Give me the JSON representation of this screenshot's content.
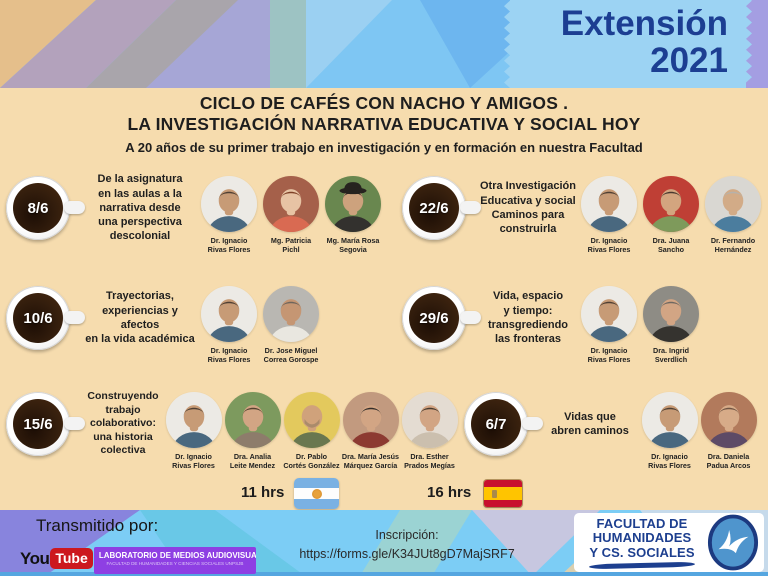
{
  "badge": {
    "line1": "Extensión",
    "line2": "2021"
  },
  "title": {
    "line1": "CICLO DE CAFÉS CON NACHO Y AMIGOS .",
    "line2": "LA INVESTIGACIÓN NARRATIVA EDUCATIVA Y SOCIAL HOY",
    "subtitle": "A 20 años de su primer trabajo en investigación y en formación en nuestra Facultad"
  },
  "sessions": [
    {
      "date": "8/6",
      "description": "De la asignatura\nen las aulas  a la\nnarrativa desde\nuna perspectiva\ndescolonial",
      "speakers": [
        {
          "name": "Dr. Ignacio\nRivas Flores",
          "photo": {
            "bg": "#eceae5",
            "hair": "#4e3f33",
            "skin": "#c79b76",
            "shirt": "#49687f"
          }
        },
        {
          "name": "Mg. Patricia\nPichl",
          "photo": {
            "bg": "#a5604a",
            "hair": "#7d4026",
            "skin": "#e7c3a4",
            "shirt": "#d96a52"
          }
        },
        {
          "name": "Mg. María Rosa\nSegovia",
          "photo": {
            "bg": "#69874f",
            "hair": "#2c2824",
            "skin": "#cda27d",
            "shirt": "#33312e",
            "hat": true
          }
        }
      ]
    },
    {
      "date": "22/6",
      "description": "Otra Investigación\nEducativa y social\nCaminos para\nconstruirla",
      "speakers": [
        {
          "name": "Dr. Ignacio\nRivas Flores",
          "photo": {
            "bg": "#eceae5",
            "hair": "#4e3f33",
            "skin": "#c79b76",
            "shirt": "#49687f"
          }
        },
        {
          "name": "Dra. Juana\nSancho",
          "photo": {
            "bg": "#bf3f35",
            "hair": "#47382f",
            "skin": "#d3a57f",
            "shirt": "#7e9a5b"
          }
        },
        {
          "name": "Dr. Fernando\nHernández",
          "photo": {
            "bg": "#d9d7d2",
            "hair": "#b5b2ac",
            "skin": "#d2ab87",
            "shirt": "#4b7d9e"
          }
        }
      ]
    },
    {
      "date": "10/6",
      "description": "Trayectorias,\nexperiencias y\nafectos\nen la vida académica",
      "speakers": [
        {
          "name": "Dr. Ignacio\nRivas Flores",
          "photo": {
            "bg": "#eceae5",
            "hair": "#4e3f33",
            "skin": "#c79b76",
            "shirt": "#49687f"
          }
        },
        {
          "name": "Dr. Jose Miguel\nCorrea Gorospe",
          "photo": {
            "bg": "#b9b7b2",
            "hair": "#6e655c",
            "skin": "#c59673",
            "shirt": "#e9e7e0"
          }
        }
      ]
    },
    {
      "date": "29/6",
      "description": "Vida, espacio\ny tiempo:\ntransgrediendo\nlas fronteras",
      "speakers": [
        {
          "name": "Dr. Ignacio\nRivas Flores",
          "photo": {
            "bg": "#eceae5",
            "hair": "#4e3f33",
            "skin": "#c79b76",
            "shirt": "#49687f"
          }
        },
        {
          "name": "Dra. Ingrid\nSverdlich",
          "photo": {
            "bg": "#8e8c85",
            "hair": "#6e6861",
            "skin": "#d2a584",
            "shirt": "#35332f"
          }
        }
      ]
    },
    {
      "date": "15/6",
      "description": "Construyendo\ntrabajo\ncolaborativo:\nuna historia\ncolectiva",
      "speakers": [
        {
          "name": "Dr. Ignacio\nRivas Flores",
          "photo": {
            "bg": "#eceae5",
            "hair": "#4e3f33",
            "skin": "#c79b76",
            "shirt": "#49687f"
          }
        },
        {
          "name": "Dra. Analia\nLeite Mendez",
          "photo": {
            "bg": "#7d9a5e",
            "hair": "#54412f",
            "skin": "#d2a584",
            "shirt": "#8d7c6b"
          }
        },
        {
          "name": "Dr. Pablo\nCortés González",
          "photo": {
            "bg": "#e3c95d",
            "hair": "#8a795f",
            "skin": "#d0a27b",
            "shirt": "#69774f",
            "bald": true
          }
        },
        {
          "name": "Dra. María  Jesús\nMárquez García",
          "photo": {
            "bg": "#c29a7f",
            "hair": "#332e2a",
            "skin": "#d2a584",
            "shirt": "#8c3a31"
          }
        },
        {
          "name": "Dra. Esther\nPrados Megías",
          "photo": {
            "bg": "#e4dcd2",
            "hair": "#473a2e",
            "skin": "#d2a584",
            "shirt": "#cbbfae"
          }
        }
      ]
    },
    {
      "date": "6/7",
      "description": "Vidas que\nabren caminos",
      "speakers": [
        {
          "name": "Dr. Ignacio\nRivas Flores",
          "photo": {
            "bg": "#eceae5",
            "hair": "#4e3f33",
            "skin": "#c79b76",
            "shirt": "#49687f"
          }
        },
        {
          "name": "Dra. Daniela\nPadua Arcos",
          "photo": {
            "bg": "#b27a5c",
            "hair": "#6f5443",
            "skin": "#d7ab88",
            "shirt": "#5d4a66"
          }
        }
      ]
    }
  ],
  "times": [
    {
      "label": "11 hrs",
      "flag": "argentina-flag"
    },
    {
      "label": "16 hrs",
      "flag": "spain-flag"
    }
  ],
  "footer": {
    "transmitted_by": "Transmitido por:",
    "youtube_you": "You",
    "youtube_tube": "Tube",
    "lab_line1": "LABORATORIO DE MEDIOS AUDIOVISUALES",
    "lab_line2": "FACULTAD DE HUMANIDADES Y CIENCIAS SOCIALES UNPSJB",
    "inscription_label": "Inscripción:",
    "inscription_url": "https://forms.gle/K34JUt8gD7MajSRF7",
    "faculty_line1": "FACULTAD DE",
    "faculty_line2": "HUMANIDADES",
    "faculty_line3": "Y CS. SOCIALES"
  },
  "colors": {
    "page_bg": "#f6dcae",
    "headline": "#1e1e1e",
    "badge_bg": "#9cd3f3",
    "badge_text": "#1c3e92",
    "footer_bg": "#7ccdf5",
    "lab_banner_bg": "#8e3fe3",
    "youtube_red": "#cc181e",
    "faculty_blue": "#1d3f8f",
    "flag_ar_blue": "#7ab1e3",
    "flag_ar_sun": "#e8a23c",
    "flag_es_red": "#c8102e",
    "flag_es_yellow": "#ffc400"
  }
}
